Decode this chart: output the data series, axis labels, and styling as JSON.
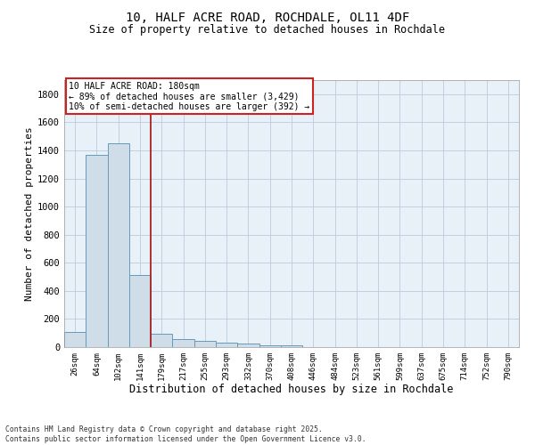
{
  "title1": "10, HALF ACRE ROAD, ROCHDALE, OL11 4DF",
  "title2": "Size of property relative to detached houses in Rochdale",
  "xlabel": "Distribution of detached houses by size in Rochdale",
  "ylabel": "Number of detached properties",
  "bar_labels": [
    "26sqm",
    "64sqm",
    "102sqm",
    "141sqm",
    "179sqm",
    "217sqm",
    "255sqm",
    "293sqm",
    "332sqm",
    "370sqm",
    "408sqm",
    "446sqm",
    "484sqm",
    "523sqm",
    "561sqm",
    "599sqm",
    "637sqm",
    "675sqm",
    "714sqm",
    "752sqm",
    "790sqm"
  ],
  "bar_heights": [
    110,
    1370,
    1450,
    510,
    95,
    60,
    45,
    30,
    25,
    15,
    10,
    0,
    0,
    0,
    0,
    0,
    0,
    0,
    0,
    0,
    0
  ],
  "bar_color": "#cfdde9",
  "bar_edge_color": "#6699bb",
  "grid_color": "#bbccdd",
  "vline_idx": 4,
  "vline_color": "#aa2222",
  "annotation_text": "10 HALF ACRE ROAD: 180sqm\n← 89% of detached houses are smaller (3,429)\n10% of semi-detached houses are larger (392) →",
  "annotation_box_color": "white",
  "annotation_box_edge": "#cc2222",
  "ylim": [
    0,
    1900
  ],
  "yticks": [
    0,
    200,
    400,
    600,
    800,
    1000,
    1200,
    1400,
    1600,
    1800
  ],
  "bg_color": "#e8f0f8",
  "footer": "Contains HM Land Registry data © Crown copyright and database right 2025.\nContains public sector information licensed under the Open Government Licence v3.0."
}
